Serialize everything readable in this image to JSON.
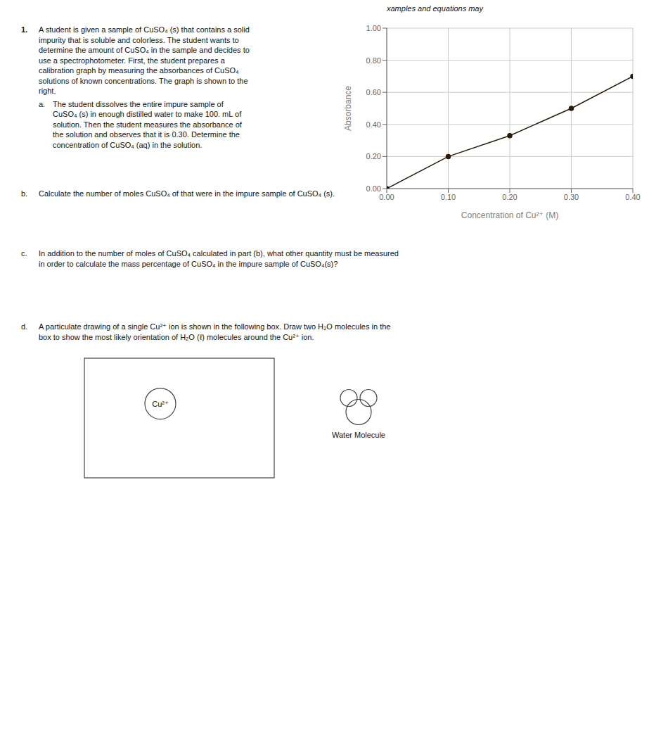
{
  "chart_data": {
    "type": "line",
    "x_label": "Concentration of Cu²⁺ (M)",
    "y_label": "Absorbance",
    "x": [
      0.0,
      0.1,
      0.2,
      0.3,
      0.4
    ],
    "values": [
      0.0,
      0.2,
      0.33,
      0.5,
      0.7
    ],
    "color": "#2a1a0a",
    "marker": "circle",
    "xlim": [
      0.0,
      0.4
    ],
    "ylim": [
      0.0,
      1.0
    ],
    "xticks": [
      {
        "value": 0.0,
        "label": "0.00"
      },
      {
        "value": 0.1,
        "label": "0.10"
      },
      {
        "value": 0.2,
        "label": "0.20"
      },
      {
        "value": 0.3,
        "label": "0.30"
      },
      {
        "value": 0.4,
        "label": "0.40"
      }
    ],
    "yticks": [
      {
        "value": 0.0,
        "label": "0.00"
      },
      {
        "value": 0.2,
        "label": "0.20"
      },
      {
        "value": 0.4,
        "label": "0.40"
      },
      {
        "value": 0.6,
        "label": "0.60"
      },
      {
        "value": 0.8,
        "label": "0.80"
      },
      {
        "value": 1.0,
        "label": "1.00"
      }
    ],
    "grid": true,
    "annotations": [
      "xamples and equations may",
      "1.",
      "A student is given a sample of CuSO₄ (s) that contains a solid",
      "impurity that is soluble and colorless. The student wants to",
      "determine the amount of CuSO₄ in the sample and decides to",
      "use a spectrophotometer. First, the student prepares a",
      "calibration graph by measuring the absorbances of CuSO₄",
      "solutions of known concentrations. The graph is shown to the",
      "right.",
      "a.",
      "The student dissolves the entire impure sample of",
      "CuSO₄ (s) in enough distilled water to make 100. mL of",
      "solution. Then the student measures the absorbance of",
      "the solution and observes that it is 0.30. Determine the",
      "concentration of CuSO₄ (aq) in the solution.",
      "b.",
      "Calculate the number of moles CuSO₄ of that were in the impure sample of CuSO₄ (s).",
      "c.",
      "In addition to the number of moles of CuSO₄ calculated in part (b), what other quantity must be measured",
      "in order to calculate the mass percentage of CuSO₄ in the impure sample of CuSO₄(s)?",
      "d.",
      "A particulate drawing of a single Cu²⁺ ion is shown in the following box. Draw two H₂O molecules in the",
      "box to show the most likely orientation of H₂O (ℓ) molecules around the Cu²⁺ ion.",
      "Cu²⁺",
      "Water Molecule"
    ]
  }
}
